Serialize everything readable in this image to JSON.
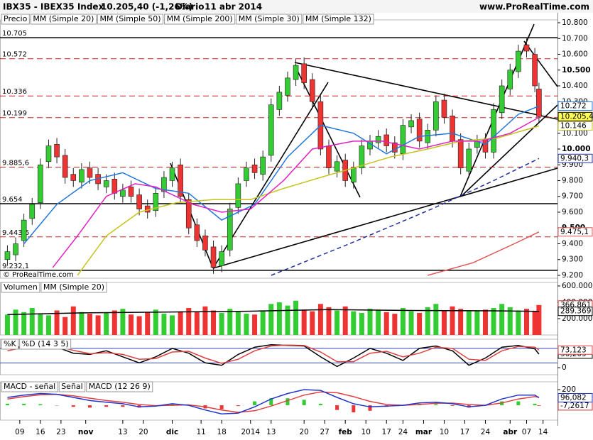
{
  "header": {
    "symbol": "IBX35 - IBEX35 Index",
    "price": "10.205,40 (-1,26%)",
    "period": "Diario",
    "date": "11 abr 2014",
    "site": "www.ProRealTime.com",
    "watermark": "© ProRealTime.com"
  },
  "chart_data": [
    {
      "type": "candlestick",
      "name": "Precio",
      "up_color": "#33cc33",
      "down_color": "#ee3333",
      "xlim": [
        -4.8,
        130.5
      ],
      "xticks": [
        {
          "value": 0,
          "label": "09"
        },
        {
          "value": 5,
          "label": "16"
        },
        {
          "value": 10,
          "label": "23"
        },
        {
          "value": 16,
          "label": "nov"
        },
        {
          "value": 25,
          "label": "13"
        },
        {
          "value": 30,
          "label": "20"
        },
        {
          "value": 37,
          "label": "dic"
        },
        {
          "value": 44,
          "label": "11"
        },
        {
          "value": 49,
          "label": "18"
        },
        {
          "value": 56,
          "label": "2014"
        },
        {
          "value": 61,
          "label": "13"
        },
        {
          "value": 69,
          "label": "20"
        },
        {
          "value": 74,
          "label": "27"
        },
        {
          "value": 79,
          "label": "feb"
        },
        {
          "value": 84,
          "label": "10"
        },
        {
          "value": 89,
          "label": "17"
        },
        {
          "value": 93,
          "label": "24"
        },
        {
          "value": 98,
          "label": "mar"
        },
        {
          "value": 103,
          "label": "10"
        },
        {
          "value": 108,
          "label": "17"
        },
        {
          "value": 113,
          "label": "24"
        },
        {
          "value": 119,
          "label": "abr"
        },
        {
          "value": 123,
          "label": "07"
        },
        {
          "value": 127,
          "label": "14"
        }
      ],
      "ylim": [
        9182,
        10818
      ],
      "yticks": [
        {
          "value": 10800,
          "label": "10.800"
        },
        {
          "value": 10700,
          "label": "10.700"
        },
        {
          "value": 10600,
          "label": "10.600"
        },
        {
          "value": 10500,
          "label": "10.500"
        },
        {
          "value": 10400,
          "label": "10.400"
        },
        {
          "value": 10300,
          "label": "10.300"
        },
        {
          "value": 10200,
          "label": "10.200"
        },
        {
          "value": 10100,
          "label": "10.100"
        },
        {
          "value": 10000,
          "label": "10.000"
        },
        {
          "value": 9900,
          "label": "9.900"
        },
        {
          "value": 9800,
          "label": "9.800"
        },
        {
          "value": 9700,
          "label": "9.700"
        },
        {
          "value": 9600,
          "label": "9.600"
        },
        {
          "value": 9500,
          "label": "9.500"
        },
        {
          "value": 9400,
          "label": "9.400"
        },
        {
          "value": 9300,
          "label": "9.300"
        },
        {
          "value": 9200,
          "label": "9.200"
        }
      ],
      "levels": [
        {
          "value": 10705,
          "label": "10.705",
          "style": "solid"
        },
        {
          "value": 10572,
          "label": "10.572",
          "style": "dashed"
        },
        {
          "value": 10336,
          "label": "10.336",
          "style": "dashed"
        },
        {
          "value": 10199,
          "label": "10.199",
          "style": "dashed"
        },
        {
          "value": 9885.6,
          "label": "9.885,6",
          "style": "dashed"
        },
        {
          "value": 9654,
          "label": "9.654",
          "style": "solid"
        },
        {
          "value": 9443.6,
          "label": "9.443,6",
          "style": "dashed"
        },
        {
          "value": 9232.1,
          "label": "9.232,1",
          "style": "solid"
        }
      ],
      "x": [
        -3,
        -1,
        1,
        3,
        5,
        7,
        9,
        11,
        13,
        15,
        17,
        19,
        21,
        23,
        25,
        27,
        29,
        31,
        33,
        35,
        37,
        39,
        41,
        43,
        45,
        47,
        49,
        51,
        53,
        55,
        57,
        59,
        61,
        63,
        65,
        67,
        69,
        71,
        73,
        75,
        77,
        79,
        81,
        83,
        85,
        87,
        89,
        91,
        93,
        95,
        97,
        99,
        101,
        103,
        105,
        107,
        109,
        111,
        113,
        115,
        117,
        119,
        121,
        123,
        125,
        126
      ],
      "open": [
        9300,
        9330,
        9420,
        9560,
        9660,
        9920,
        10030,
        9960,
        9840,
        9790,
        9880,
        9840,
        9760,
        9810,
        9700,
        9760,
        9710,
        9640,
        9610,
        9730,
        9800,
        9900,
        9680,
        9520,
        9450,
        9380,
        9260,
        9360,
        9630,
        9800,
        9900,
        9840,
        9960,
        10250,
        10340,
        10440,
        10540,
        10440,
        10300,
        10020,
        9860,
        9930,
        9790,
        9880,
        10000,
        10040,
        10090,
        10040,
        9970,
        10140,
        10190,
        10040,
        10120,
        10310,
        10210,
        10060,
        9860,
        10010,
        10060,
        9980,
        10230,
        10380,
        10490,
        10660,
        10600,
        10380
      ],
      "high": [
        9390,
        9440,
        9590,
        9690,
        9940,
        10060,
        10070,
        10000,
        9880,
        9910,
        9920,
        9880,
        9840,
        9850,
        9780,
        9800,
        9750,
        9680,
        9760,
        9860,
        9920,
        9940,
        9720,
        9560,
        9490,
        9420,
        9390,
        9660,
        9820,
        9920,
        9940,
        9990,
        10320,
        10400,
        10490,
        10570,
        10580,
        10480,
        10340,
        10060,
        9960,
        9970,
        9920,
        10060,
        10090,
        10120,
        10130,
        10080,
        10190,
        10220,
        10230,
        10160,
        10340,
        10350,
        10250,
        10100,
        10040,
        10090,
        10100,
        10290,
        10440,
        10540,
        10660,
        10700,
        10640,
        10420
      ],
      "low": [
        9260,
        9290,
        9380,
        9520,
        9620,
        9880,
        9910,
        9780,
        9760,
        9750,
        9780,
        9740,
        9720,
        9680,
        9660,
        9660,
        9580,
        9560,
        9570,
        9690,
        9760,
        9660,
        9460,
        9380,
        9320,
        9210,
        9220,
        9320,
        9590,
        9760,
        9810,
        9800,
        9920,
        10210,
        10300,
        10400,
        10380,
        10260,
        9960,
        9840,
        9820,
        9760,
        9750,
        9840,
        9960,
        10000,
        9980,
        9940,
        9930,
        10100,
        10010,
        10000,
        10080,
        10160,
        10010,
        9840,
        9820,
        9970,
        9940,
        9940,
        10190,
        10340,
        10450,
        10580,
        10360,
        10165
      ],
      "close": [
        9350,
        9400,
        9550,
        9650,
        9900,
        10020,
        9950,
        9820,
        9800,
        9870,
        9820,
        9780,
        9800,
        9720,
        9740,
        9700,
        9620,
        9600,
        9720,
        9820,
        9880,
        9700,
        9500,
        9420,
        9360,
        9250,
        9350,
        9620,
        9780,
        9880,
        9850,
        9950,
        10280,
        10360,
        10450,
        10530,
        10420,
        10300,
        10000,
        9880,
        9920,
        9800,
        9880,
        10020,
        10050,
        10080,
        10020,
        9980,
        10150,
        10180,
        10050,
        10120,
        10300,
        10200,
        10050,
        9880,
        10000,
        10050,
        9980,
        10250,
        10400,
        10500,
        10620,
        10620,
        10400,
        10205.4
      ],
      "end_label": "10.205,40",
      "series": [
        {
          "name": "MM (Simple 20)",
          "color": "#2277dd",
          "x": [
            1,
            9,
            17,
            25,
            33,
            41,
            49,
            57,
            65,
            73,
            81,
            89,
            97,
            105,
            113,
            121,
            126
          ],
          "values": [
            9400,
            9650,
            9800,
            9850,
            9750,
            9720,
            9550,
            9650,
            9950,
            10150,
            10100,
            9970,
            10080,
            10100,
            10030,
            10220,
            10272
          ],
          "end_label": "10.272"
        },
        {
          "name": "MM (Simple 50)",
          "color": "#c8c21e",
          "x": [
            14,
            21,
            29,
            38,
            47,
            56,
            64,
            73,
            81,
            90,
            99,
            107,
            116,
            126
          ],
          "values": [
            9200,
            9450,
            9600,
            9660,
            9680,
            9680,
            9750,
            9820,
            9880,
            9950,
            10000,
            10050,
            10070,
            10146
          ],
          "end_label": "10.146"
        },
        {
          "name": "MM (Simple 200)",
          "color": "#e05555",
          "x": [
            99,
            110,
            120,
            126
          ],
          "values": [
            9200,
            9280,
            9400,
            9475.1
          ],
          "end_label": "9.475,1"
        },
        {
          "name": "MM (Simple 30)",
          "color": "#e020c0",
          "x": [
            8,
            14,
            21,
            28,
            33,
            42,
            49,
            56,
            64,
            71,
            81,
            88,
            97,
            105,
            112,
            119,
            126
          ],
          "values": [
            9250,
            9450,
            9700,
            9780,
            9760,
            9650,
            9600,
            9620,
            9800,
            10000,
            10050,
            10050,
            10000,
            10050,
            10050,
            10100,
            10200
          ]
        },
        {
          "name": "MM (Simple 132)",
          "color": "#2030a0",
          "dash": true,
          "x": [
            61,
            80,
            100,
            115,
            126
          ],
          "values": [
            9200,
            9400,
            9620,
            9800,
            9940.3
          ],
          "end_label": "9.940,3"
        }
      ]
    },
    {
      "type": "volume",
      "ylim": [
        0,
        643000
      ],
      "yticks": [
        {
          "value": 600000,
          "label": "600.000"
        },
        {
          "value": 400000,
          "label": "400.000"
        },
        {
          "value": 200000,
          "label": "200.000"
        }
      ],
      "series": [
        {
          "name": "Volumen",
          "kind": "bar",
          "color": "#cc3333",
          "values": [
            250000,
            310000,
            280000,
            330000,
            260000,
            240000,
            300000,
            220000,
            350000,
            280000,
            260000,
            240000,
            270000,
            300000,
            320000,
            250000,
            230000,
            280000,
            310000,
            260000,
            240000,
            290000,
            330000,
            280000,
            350000,
            300000,
            270000,
            320000,
            290000,
            260000,
            250000,
            300000,
            380000,
            400000,
            360000,
            420000,
            310000,
            290000,
            380000,
            340000,
            300000,
            350000,
            290000,
            270000,
            320000,
            300000,
            280000,
            260000,
            330000,
            290000,
            270000,
            340000,
            380000,
            300000,
            350000,
            320000,
            290000,
            300000,
            310000,
            330000,
            380000,
            340000,
            300000,
            320000,
            290000,
            366861
          ],
          "end_label": "366.861"
        },
        {
          "name": "MM (Simple 20)",
          "color": "#000000",
          "x": [
            -3,
            15,
            35,
            55,
            75,
            95,
            115,
            126
          ],
          "values": [
            250000,
            270000,
            280000,
            290000,
            310000,
            300000,
            295000,
            289369
          ],
          "end_label": "289.369"
        }
      ]
    },
    {
      "type": "line",
      "ylim": [
        -29,
        118
      ],
      "yticks": [
        0
      ],
      "levels": [
        20,
        80
      ],
      "level_color": "#3344aa",
      "x": [
        -3,
        1,
        5,
        9,
        13,
        17,
        21,
        25,
        29,
        33,
        37,
        41,
        45,
        49,
        53,
        57,
        61,
        65,
        69,
        73,
        77,
        81,
        85,
        89,
        93,
        97,
        101,
        105,
        109,
        113,
        117,
        121,
        125,
        126
      ],
      "series": [
        {
          "name": "%K",
          "color": "#000000",
          "values": [
            80,
            88,
            92,
            85,
            60,
            55,
            70,
            45,
            20,
            45,
            80,
            60,
            20,
            10,
            55,
            85,
            95,
            92,
            90,
            45,
            5,
            40,
            80,
            60,
            30,
            80,
            90,
            70,
            10,
            40,
            85,
            92,
            78,
            56.205
          ],
          "end_label": "56,205"
        },
        {
          "name": "%D (14 3 5)",
          "color": "#e04040",
          "values": [
            70,
            84,
            90,
            88,
            72,
            58,
            62,
            55,
            35,
            38,
            65,
            68,
            40,
            18,
            35,
            70,
            90,
            94,
            92,
            65,
            25,
            25,
            60,
            68,
            45,
            60,
            85,
            80,
            35,
            30,
            70,
            88,
            85,
            73.123
          ],
          "end_label": "73,123"
        }
      ]
    },
    {
      "type": "line",
      "ylim": [
        -190,
        300
      ],
      "yticks": [
        200
      ],
      "x": [
        -3,
        1,
        5,
        9,
        13,
        17,
        21,
        25,
        29,
        33,
        37,
        41,
        45,
        49,
        53,
        57,
        61,
        65,
        69,
        73,
        77,
        81,
        85,
        89,
        93,
        97,
        101,
        105,
        109,
        113,
        117,
        121,
        125,
        126
      ],
      "series": [
        {
          "name": "MACD - señal",
          "kind": "bar",
          "color": "#cc3333",
          "values": [
            20,
            20,
            15,
            0,
            -20,
            -30,
            -20,
            -20,
            -30,
            -5,
            20,
            -5,
            -40,
            -50,
            -10,
            50,
            90,
            90,
            70,
            20,
            -60,
            -90,
            -70,
            -20,
            0,
            20,
            15,
            -8,
            -30,
            0,
            50,
            50,
            20,
            -7.2617
          ],
          "end_label": "-7,2617"
        },
        {
          "name": "Señal",
          "color": "#e04040",
          "values": [
            80,
            110,
            135,
            140,
            120,
            90,
            60,
            40,
            10,
            -5,
            0,
            5,
            -20,
            -60,
            -90,
            -70,
            -10,
            60,
            130,
            170,
            160,
            110,
            50,
            10,
            0,
            10,
            25,
            28,
            10,
            0,
            30,
            80,
            110,
            103.3437
          ]
        },
        {
          "name": "MACD (12 26 9)",
          "color": "#2233cc",
          "values": [
            100,
            130,
            150,
            140,
            100,
            60,
            40,
            20,
            -20,
            -10,
            20,
            0,
            -60,
            -110,
            -100,
            -20,
            80,
            150,
            200,
            190,
            100,
            20,
            -20,
            -10,
            0,
            30,
            40,
            20,
            -20,
            0,
            80,
            130,
            130,
            96.082
          ],
          "end_label": "96,082"
        }
      ]
    }
  ]
}
